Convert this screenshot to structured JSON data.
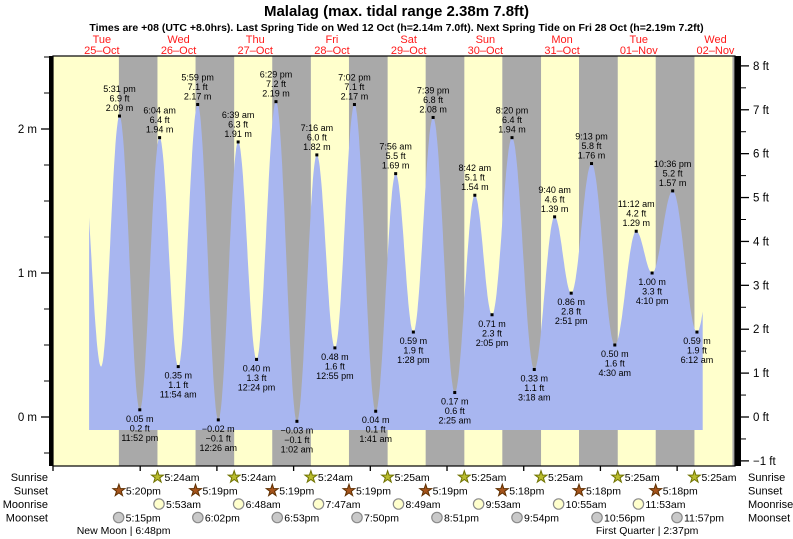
{
  "header": {
    "title": "Malalag (max. tidal range 2.38m 7.8ft)",
    "subtitle": "Times are +08 (UTC +8.0hrs). Last Spring Tide on Wed 12 Oct (h=2.14m 7.0ft). Next Spring Tide on Fri 28 Oct (h=2.19m 7.2ft)"
  },
  "chart_data": {
    "type": "area",
    "title": "Malalag (max. tidal range 2.38m 7.8ft)",
    "time_origin": "Tue 25-Oct 00:00 (+08)",
    "x_axis": {
      "days": [
        {
          "dow": "Tue",
          "date": "25–Oct"
        },
        {
          "dow": "Wed",
          "date": "26–Oct"
        },
        {
          "dow": "Thu",
          "date": "27–Oct"
        },
        {
          "dow": "Fri",
          "date": "28–Oct"
        },
        {
          "dow": "Sat",
          "date": "29–Oct"
        },
        {
          "dow": "Sun",
          "date": "30–Oct"
        },
        {
          "dow": "Mon",
          "date": "31–Oct"
        },
        {
          "dow": "Tue",
          "date": "01–Nov"
        },
        {
          "dow": "Wed",
          "date": "02–Nov"
        }
      ]
    },
    "y_axis_left": {
      "unit": "m",
      "ticks": [
        {
          "v": 0,
          "label": "0 m"
        },
        {
          "v": 1,
          "label": "1 m"
        },
        {
          "v": 2,
          "label": "2 m"
        }
      ],
      "minor_step": 0.25
    },
    "y_axis_right": {
      "unit": "ft",
      "ticks": [
        {
          "v": 8,
          "label": "8 ft"
        },
        {
          "v": 7,
          "label": "7 ft"
        },
        {
          "v": 6,
          "label": "6 ft"
        },
        {
          "v": 5,
          "label": "5 ft"
        },
        {
          "v": 4,
          "label": "4 ft"
        },
        {
          "v": 3,
          "label": "3 ft"
        },
        {
          "v": 2,
          "label": "2 ft"
        },
        {
          "v": 1,
          "label": "1 ft"
        },
        {
          "v": 0,
          "label": "0 ft"
        },
        {
          "v": -1,
          "label": "−1 ft"
        }
      ],
      "minor_step": 0.5
    },
    "colors": {
      "day_band": "#ffffcc",
      "night_band": "#a9a9a9",
      "water": "#a8b6f0",
      "axis": "#000000",
      "day_label": "#ff1a1a",
      "annotation": "#000000",
      "sunrise_star_fill": "#b9bc2e",
      "sunrise_star_stroke": "#6e7100",
      "sunset_star_fill": "#a5541c",
      "sunset_star_stroke": "#5f2f00",
      "moonrise_fill": "#ffffcc",
      "moonrise_stroke": "#8a8a8a",
      "moonset_fill": "#c9c9c9",
      "moonset_stroke": "#8a8a8a"
    },
    "tide_events": [
      {
        "t": 5.6,
        "h": 1.9,
        "type": "high",
        "labeled": false
      },
      {
        "t": 11.75,
        "h": 0.35,
        "type": "low",
        "labeled": false
      },
      {
        "t": 17.517,
        "h": 2.09,
        "type": "high",
        "labeled": true,
        "time": "5:31 pm",
        "ft": "6.9 ft",
        "m": "2.09 m"
      },
      {
        "t": 23.867,
        "h": 0.05,
        "type": "low",
        "labeled": true,
        "time": "11:52 pm",
        "ft": "0.2 ft",
        "m": "0.05 m"
      },
      {
        "t": 30.067,
        "h": 1.94,
        "type": "high",
        "labeled": true,
        "time": "6:04 am",
        "ft": "6.4 ft",
        "m": "1.94 m"
      },
      {
        "t": 35.9,
        "h": 0.35,
        "type": "low",
        "labeled": true,
        "time": "11:54 am",
        "ft": "1.1 ft",
        "m": "0.35 m"
      },
      {
        "t": 41.983,
        "h": 2.17,
        "type": "high",
        "labeled": true,
        "time": "5:59 pm",
        "ft": "7.1 ft",
        "m": "2.17 m"
      },
      {
        "t": 48.433,
        "h": -0.02,
        "type": "low",
        "labeled": true,
        "time": "12:26 am",
        "ft": "−0.1 ft",
        "m": "−0.02 m"
      },
      {
        "t": 54.65,
        "h": 1.91,
        "type": "high",
        "labeled": true,
        "time": "6:39 am",
        "ft": "6.3 ft",
        "m": "1.91 m"
      },
      {
        "t": 60.4,
        "h": 0.4,
        "type": "low",
        "labeled": true,
        "time": "12:24 pm",
        "ft": "1.3 ft",
        "m": "0.40 m"
      },
      {
        "t": 66.483,
        "h": 2.19,
        "type": "high",
        "labeled": true,
        "time": "6:29 pm",
        "ft": "7.2 ft",
        "m": "2.19 m"
      },
      {
        "t": 73.033,
        "h": -0.03,
        "type": "low",
        "labeled": true,
        "time": "1:02 am",
        "ft": "−0.1 ft",
        "m": "−0.03 m"
      },
      {
        "t": 79.267,
        "h": 1.82,
        "type": "high",
        "labeled": true,
        "time": "7:16 am",
        "ft": "6.0 ft",
        "m": "1.82 m"
      },
      {
        "t": 84.917,
        "h": 0.48,
        "type": "low",
        "labeled": true,
        "time": "12:55 pm",
        "ft": "1.6 ft",
        "m": "0.48 m"
      },
      {
        "t": 91.033,
        "h": 2.17,
        "type": "high",
        "labeled": true,
        "time": "7:02 pm",
        "ft": "7.1 ft",
        "m": "2.17 m"
      },
      {
        "t": 97.683,
        "h": 0.04,
        "type": "low",
        "labeled": true,
        "time": "1:41 am",
        "ft": "0.1 ft",
        "m": "0.04 m"
      },
      {
        "t": 103.933,
        "h": 1.69,
        "type": "high",
        "labeled": true,
        "time": "7:56 am",
        "ft": "5.5 ft",
        "m": "1.69 m"
      },
      {
        "t": 109.467,
        "h": 0.59,
        "type": "low",
        "labeled": true,
        "time": "1:28 pm",
        "ft": "1.9 ft",
        "m": "0.59 m"
      },
      {
        "t": 115.65,
        "h": 2.08,
        "type": "high",
        "labeled": true,
        "time": "7:39 pm",
        "ft": "6.8 ft",
        "m": "2.08 m"
      },
      {
        "t": 122.417,
        "h": 0.17,
        "type": "low",
        "labeled": true,
        "time": "2:25 am",
        "ft": "0.6 ft",
        "m": "0.17 m"
      },
      {
        "t": 128.7,
        "h": 1.54,
        "type": "high",
        "labeled": true,
        "time": "8:42 am",
        "ft": "5.1 ft",
        "m": "1.54 m"
      },
      {
        "t": 134.083,
        "h": 0.71,
        "type": "low",
        "labeled": true,
        "time": "2:05 pm",
        "ft": "2.3 ft",
        "m": "0.71 m"
      },
      {
        "t": 140.333,
        "h": 1.94,
        "type": "high",
        "labeled": true,
        "time": "8:20 pm",
        "ft": "6.4 ft",
        "m": "1.94 m"
      },
      {
        "t": 147.3,
        "h": 0.33,
        "type": "low",
        "labeled": true,
        "time": "3:18 am",
        "ft": "1.1 ft",
        "m": "0.33 m"
      },
      {
        "t": 153.667,
        "h": 1.39,
        "type": "high",
        "labeled": true,
        "time": "9:40 am",
        "ft": "4.6 ft",
        "m": "1.39 m"
      },
      {
        "t": 158.85,
        "h": 0.86,
        "type": "low",
        "labeled": true,
        "time": "2:51 pm",
        "ft": "2.8 ft",
        "m": "0.86 m"
      },
      {
        "t": 165.217,
        "h": 1.76,
        "type": "high",
        "labeled": true,
        "time": "9:13 pm",
        "ft": "5.8 ft",
        "m": "1.76 m"
      },
      {
        "t": 172.5,
        "h": 0.5,
        "type": "low",
        "labeled": true,
        "time": "4:30 am",
        "ft": "1.6 ft",
        "m": "0.50 m"
      },
      {
        "t": 179.2,
        "h": 1.29,
        "type": "high",
        "labeled": true,
        "time": "11:12 am",
        "ft": "4.2 ft",
        "m": "1.29 m"
      },
      {
        "t": 184.167,
        "h": 1.0,
        "type": "low",
        "labeled": true,
        "time": "4:10 pm",
        "ft": "3.3 ft",
        "m": "1.00 m"
      },
      {
        "t": 190.6,
        "h": 1.57,
        "type": "high",
        "labeled": true,
        "time": "10:36 pm",
        "ft": "5.2 ft",
        "m": "1.57 m"
      },
      {
        "t": 198.2,
        "h": 0.59,
        "type": "low",
        "labeled": true,
        "time": "6:12 am",
        "ft": "1.9 ft",
        "m": "0.59 m"
      },
      {
        "t": 204.3,
        "h": 1.3,
        "type": "high",
        "labeled": false
      }
    ],
    "curve": {
      "t_start": 8,
      "t_end": 200
    },
    "day_night": {
      "sunsets_t": [
        17.333,
        41.317,
        65.317,
        89.317,
        113.317,
        137.3,
        161.3,
        185.3,
        209.3
      ],
      "sunrises_t": [
        29.4,
        53.4,
        77.4,
        101.417,
        125.417,
        149.417,
        173.417,
        197.417,
        221.4
      ]
    },
    "astro": {
      "rows": [
        {
          "key": "sunrise",
          "label": "Sunrise",
          "icon": "star-sunrise",
          "events": [
            {
              "t": 29.4,
              "text": "5:24am"
            },
            {
              "t": 53.4,
              "text": "5:24am"
            },
            {
              "t": 77.4,
              "text": "5:24am"
            },
            {
              "t": 101.417,
              "text": "5:25am"
            },
            {
              "t": 125.417,
              "text": "5:25am"
            },
            {
              "t": 149.417,
              "text": "5:25am"
            },
            {
              "t": 173.417,
              "text": "5:25am"
            },
            {
              "t": 197.417,
              "text": "5:25am"
            }
          ]
        },
        {
          "key": "sunset",
          "label": "Sunset",
          "icon": "star-sunset",
          "events": [
            {
              "t": 17.333,
              "text": "5:20pm"
            },
            {
              "t": 41.317,
              "text": "5:19pm"
            },
            {
              "t": 65.317,
              "text": "5:19pm"
            },
            {
              "t": 89.317,
              "text": "5:19pm"
            },
            {
              "t": 113.317,
              "text": "5:19pm"
            },
            {
              "t": 137.3,
              "text": "5:18pm"
            },
            {
              "t": 161.3,
              "text": "5:18pm"
            },
            {
              "t": 185.3,
              "text": "5:18pm"
            }
          ]
        },
        {
          "key": "moonrise",
          "label": "Moonrise",
          "icon": "circle-moonrise",
          "events": [
            {
              "t": 29.883,
              "text": "5:53am"
            },
            {
              "t": 54.8,
              "text": "6:48am"
            },
            {
              "t": 79.783,
              "text": "7:47am"
            },
            {
              "t": 104.817,
              "text": "8:49am"
            },
            {
              "t": 129.883,
              "text": "9:53am"
            },
            {
              "t": 154.917,
              "text": "10:55am"
            },
            {
              "t": 179.883,
              "text": "11:53am"
            }
          ]
        },
        {
          "key": "moonset",
          "label": "Moonset",
          "icon": "circle-moonset",
          "events": [
            {
              "t": 17.25,
              "text": "5:15pm"
            },
            {
              "t": 42.033,
              "text": "6:02pm"
            },
            {
              "t": 66.883,
              "text": "6:53pm"
            },
            {
              "t": 91.833,
              "text": "7:50pm"
            },
            {
              "t": 116.85,
              "text": "8:51pm"
            },
            {
              "t": 141.9,
              "text": "9:54pm"
            },
            {
              "t": 166.933,
              "text": "10:56pm"
            },
            {
              "t": 191.95,
              "text": "11:57pm"
            }
          ]
        }
      ],
      "phases": [
        {
          "t": 18.8,
          "text": "New Moon | 6:48pm"
        },
        {
          "t": 182.62,
          "text": "First Quarter | 2:37pm"
        }
      ]
    }
  }
}
